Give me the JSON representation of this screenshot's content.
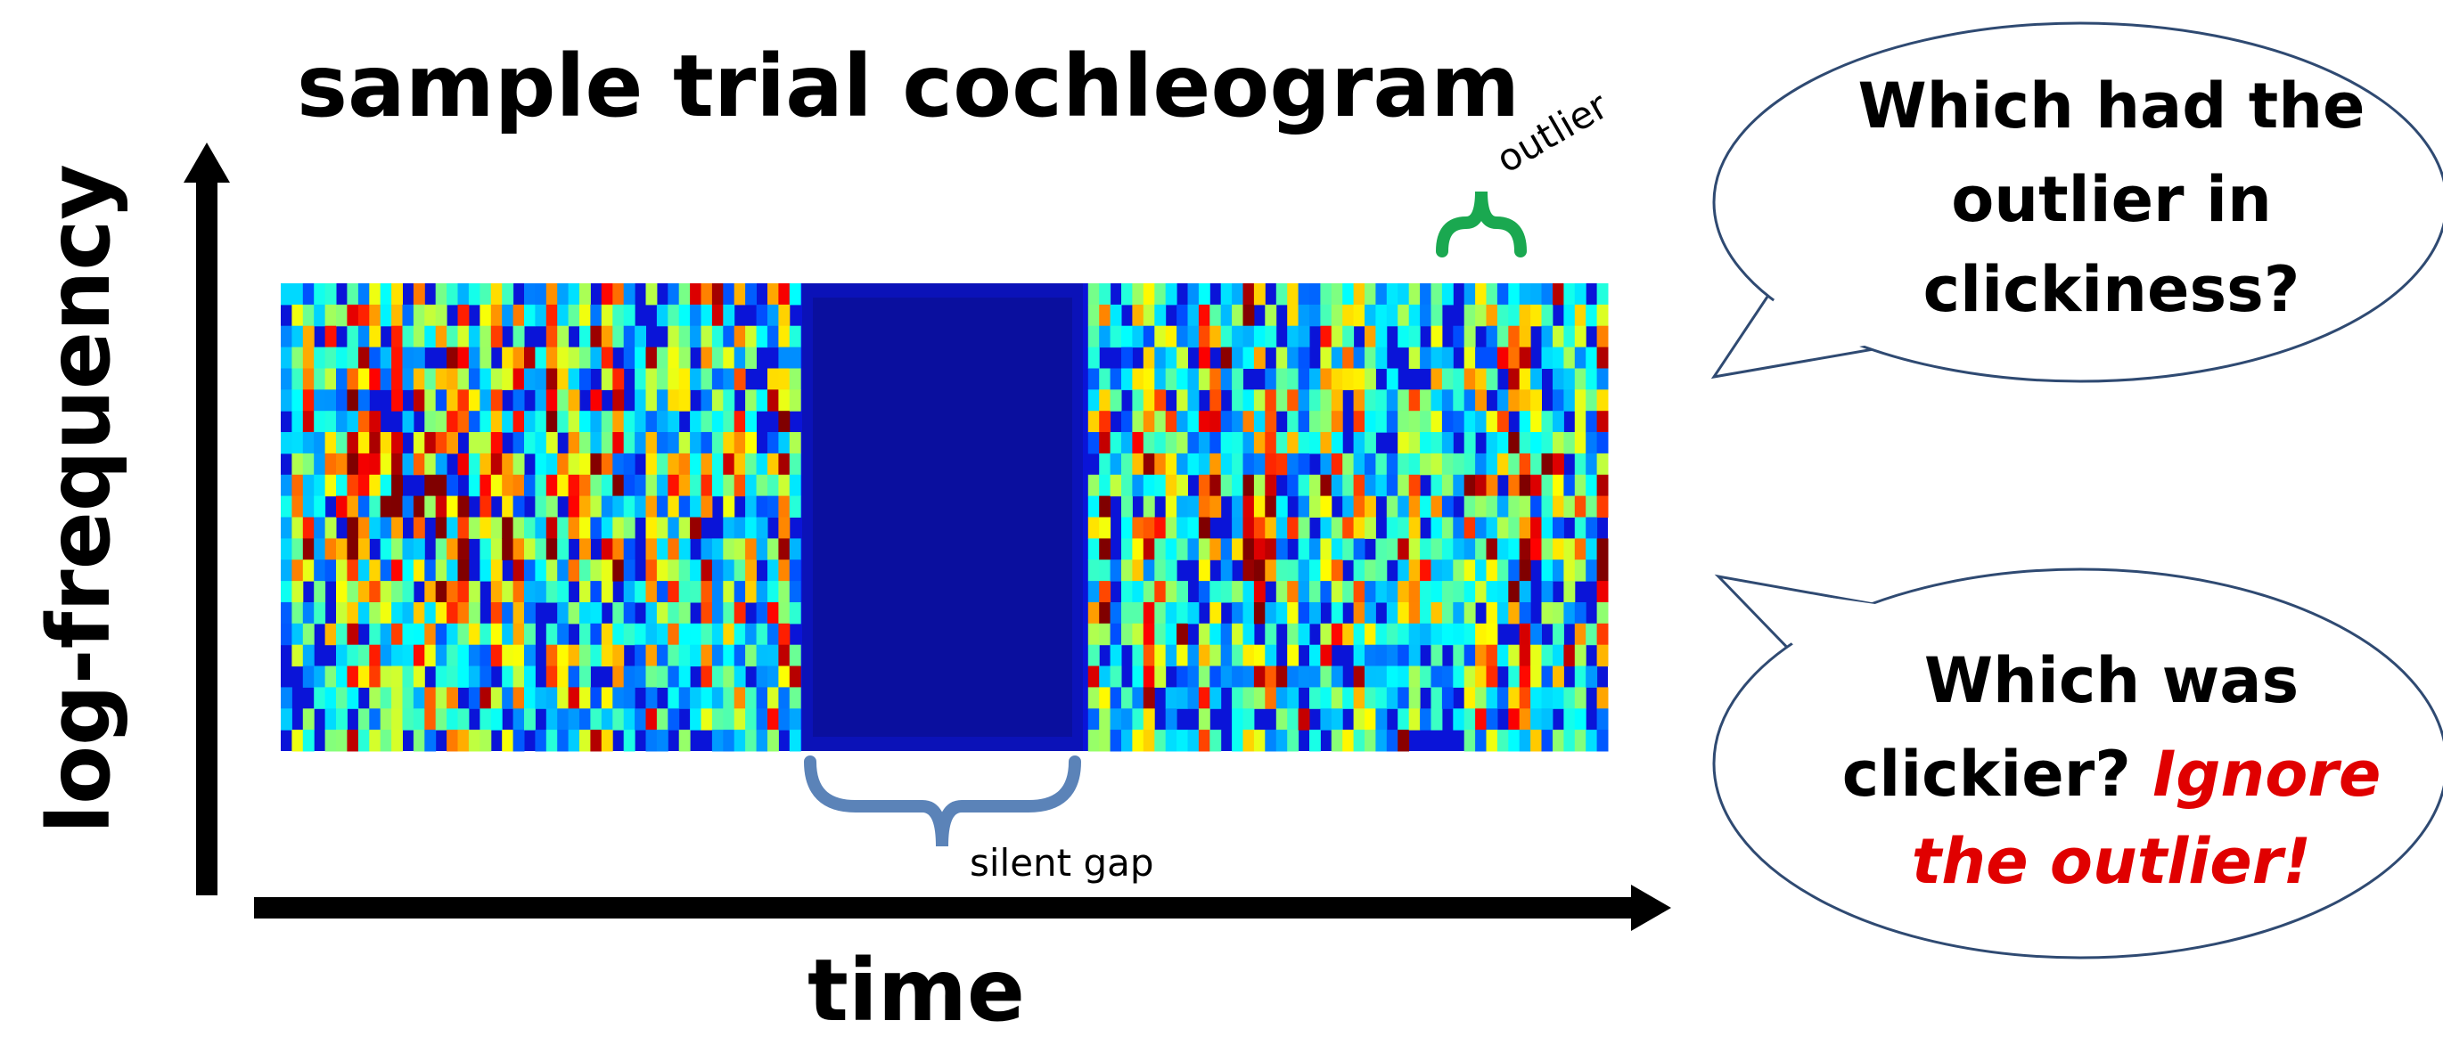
{
  "title": "sample trial cochleogram",
  "axes": {
    "y_label": "log-frequency",
    "x_label": "time"
  },
  "annotations": {
    "outlier": "outlier",
    "silent_gap": "silent gap"
  },
  "bubbles": [
    {
      "lines": [
        "Which had the",
        "outlier in",
        "clickiness?"
      ]
    },
    {
      "lines": [
        "Which was",
        "clickier?"
      ],
      "emphasis_lines": [
        "Ignore",
        "the outlier!"
      ]
    }
  ]
}
